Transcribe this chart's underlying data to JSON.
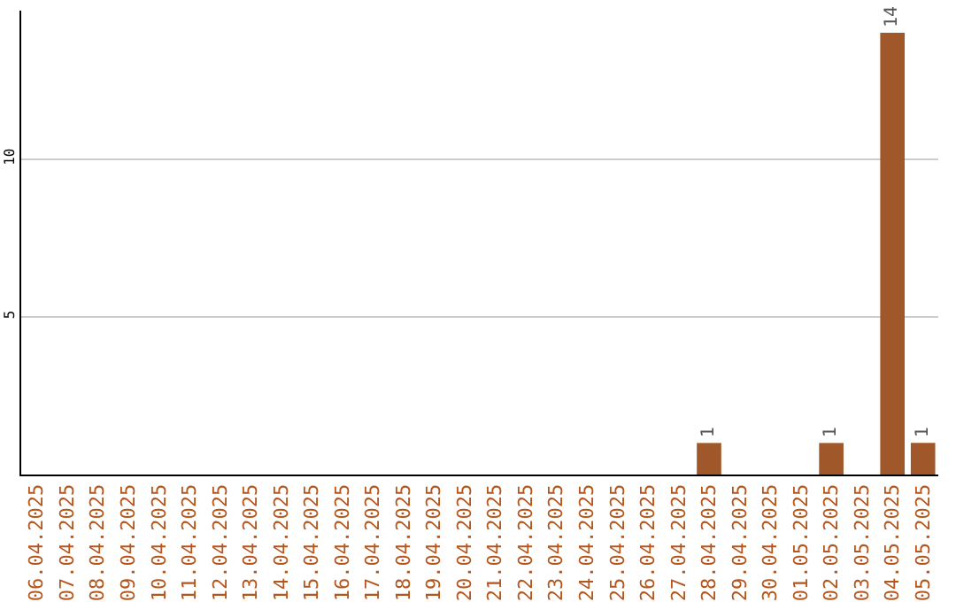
{
  "chart_data": {
    "type": "bar",
    "categories": [
      "06.04.2025",
      "07.04.2025",
      "08.04.2025",
      "09.04.2025",
      "10.04.2025",
      "11.04.2025",
      "12.04.2025",
      "13.04.2025",
      "14.04.2025",
      "15.04.2025",
      "16.04.2025",
      "17.04.2025",
      "18.04.2025",
      "19.04.2025",
      "20.04.2025",
      "21.04.2025",
      "22.04.2025",
      "23.04.2025",
      "24.04.2025",
      "25.04.2025",
      "26.04.2025",
      "27.04.2025",
      "28.04.2025",
      "29.04.2025",
      "30.04.2025",
      "01.05.2025",
      "02.05.2025",
      "03.05.2025",
      "04.05.2025",
      "05.05.2025"
    ],
    "values": [
      0,
      0,
      0,
      0,
      0,
      0,
      0,
      0,
      0,
      0,
      0,
      0,
      0,
      0,
      0,
      0,
      0,
      0,
      0,
      0,
      0,
      0,
      1,
      0,
      0,
      0,
      1,
      0,
      14,
      1
    ],
    "value_labels": [
      null,
      null,
      null,
      null,
      null,
      null,
      null,
      null,
      null,
      null,
      null,
      null,
      null,
      null,
      null,
      null,
      null,
      null,
      null,
      null,
      null,
      null,
      "1",
      null,
      null,
      null,
      "1",
      null,
      "14",
      "1"
    ],
    "color": "#a0582a",
    "ylim": [
      0,
      14.7
    ],
    "yticks": [
      5,
      10
    ],
    "grid": "y",
    "legend": false
  }
}
